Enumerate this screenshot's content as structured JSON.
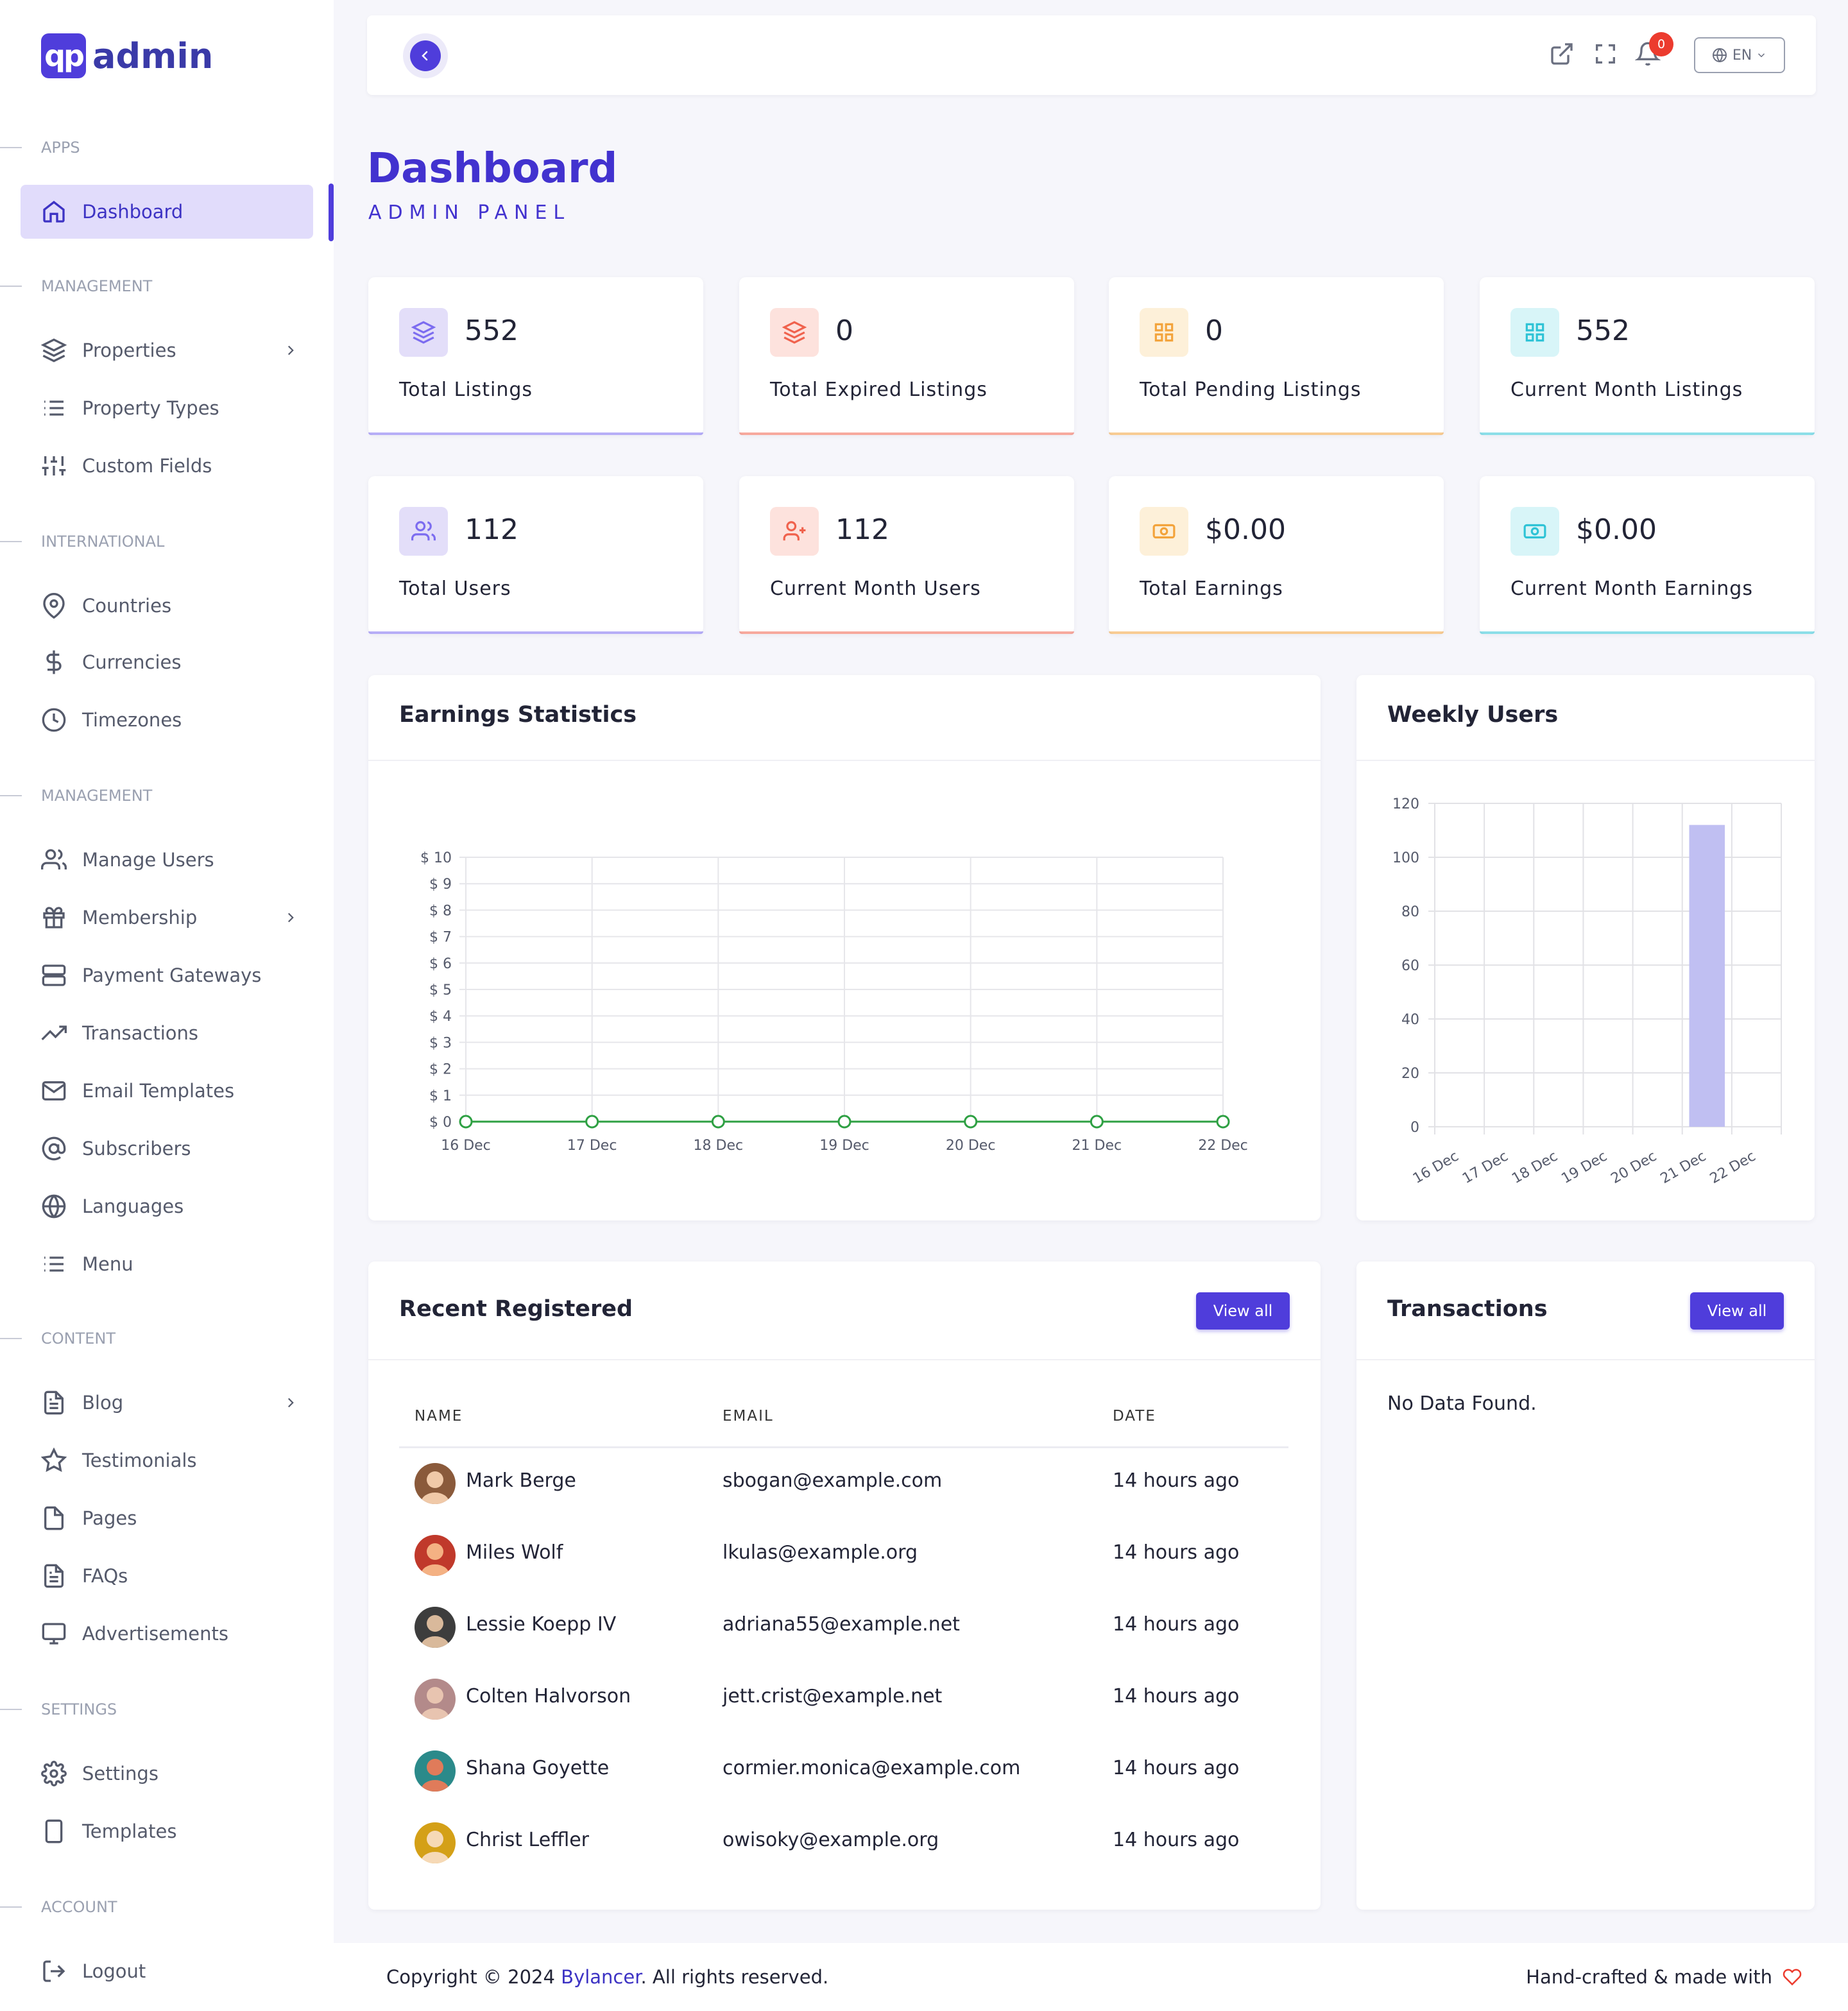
{
  "app": {
    "logo_mark": "qp",
    "logo_text": "admin"
  },
  "sidebar": {
    "sections": [
      {
        "label": "APPS",
        "items": [
          {
            "label": "Dashboard",
            "icon": "home-icon",
            "active": true
          }
        ]
      },
      {
        "label": "MANAGEMENT",
        "items": [
          {
            "label": "Properties",
            "icon": "layers-icon",
            "chevron": true
          },
          {
            "label": "Property Types",
            "icon": "list-icon"
          },
          {
            "label": "Custom Fields",
            "icon": "sliders-icon"
          }
        ]
      },
      {
        "label": "INTERNATIONAL",
        "items": [
          {
            "label": "Countries",
            "icon": "map-pin-icon"
          },
          {
            "label": "Currencies",
            "icon": "dollar-icon"
          },
          {
            "label": "Timezones",
            "icon": "clock-icon"
          }
        ]
      },
      {
        "label": "MANAGEMENT",
        "items": [
          {
            "label": "Manage Users",
            "icon": "users-icon"
          },
          {
            "label": "Membership",
            "icon": "gift-icon",
            "chevron": true
          },
          {
            "label": "Payment Gateways",
            "icon": "server-icon"
          },
          {
            "label": "Transactions",
            "icon": "trending-up-icon"
          },
          {
            "label": "Email Templates",
            "icon": "mail-icon"
          },
          {
            "label": "Subscribers",
            "icon": "at-sign-icon"
          },
          {
            "label": "Languages",
            "icon": "globe-icon"
          },
          {
            "label": "Menu",
            "icon": "list-icon"
          }
        ]
      },
      {
        "label": "CONTENT",
        "items": [
          {
            "label": "Blog",
            "icon": "file-text-icon",
            "chevron": true
          },
          {
            "label": "Testimonials",
            "icon": "star-icon"
          },
          {
            "label": "Pages",
            "icon": "file-icon"
          },
          {
            "label": "FAQs",
            "icon": "file-text-icon"
          },
          {
            "label": "Advertisements",
            "icon": "monitor-icon"
          }
        ]
      },
      {
        "label": "SETTINGS",
        "items": [
          {
            "label": "Settings",
            "icon": "settings-icon"
          },
          {
            "label": "Templates",
            "icon": "tablet-icon"
          }
        ]
      },
      {
        "label": "ACCOUNT",
        "items": [
          {
            "label": "Logout",
            "icon": "logout-icon"
          }
        ]
      }
    ]
  },
  "topbar": {
    "notifications": "0",
    "language": "EN"
  },
  "header": {
    "title": "Dashboard",
    "subtitle": "ADMIN PANEL"
  },
  "stats": [
    {
      "value": "552",
      "label": "Total Listings",
      "icon": "layers-icon",
      "color": "#7c6cf0",
      "bg": "#e3def9"
    },
    {
      "value": "0",
      "label": "Total Expired Listings",
      "icon": "layers-icon",
      "color": "#f0624d",
      "bg": "#fde2dd"
    },
    {
      "value": "0",
      "label": "Total Pending Listings",
      "icon": "grid-icon",
      "color": "#f3a33b",
      "bg": "#fdf0d9"
    },
    {
      "value": "552",
      "label": "Current Month Listings",
      "icon": "grid-icon",
      "color": "#2ec3d6",
      "bg": "#d8f5f8"
    },
    {
      "value": "112",
      "label": "Total Users",
      "icon": "users-icon",
      "color": "#7c6cf0",
      "bg": "#e3def9"
    },
    {
      "value": "112",
      "label": "Current Month Users",
      "icon": "user-plus-icon",
      "color": "#f0624d",
      "bg": "#fde2dd"
    },
    {
      "value": "$0.00",
      "label": "Total Earnings",
      "icon": "money-icon",
      "color": "#f3a33b",
      "bg": "#fdf0d9"
    },
    {
      "value": "$0.00",
      "label": "Current Month Earnings",
      "icon": "money-icon",
      "color": "#2ec3d6",
      "bg": "#d8f5f8"
    }
  ],
  "earnings": {
    "title": "Earnings Statistics"
  },
  "weekly": {
    "title": "Weekly Users"
  },
  "chart_data": [
    {
      "type": "line",
      "title": "Earnings Statistics",
      "x": [
        "16 Dec",
        "17 Dec",
        "18 Dec",
        "19 Dec",
        "20 Dec",
        "21 Dec",
        "22 Dec"
      ],
      "series": [
        {
          "values": [
            0,
            0,
            0,
            0,
            0,
            0,
            0
          ]
        }
      ],
      "ylim": [
        0,
        10
      ],
      "yticks": [
        "$ 0",
        "$ 1",
        "$ 2",
        "$ 3",
        "$ 4",
        "$ 5",
        "$ 6",
        "$ 7",
        "$ 8",
        "$ 9",
        "$ 10"
      ],
      "grid": true,
      "color": "#2ea043"
    },
    {
      "type": "bar",
      "title": "Weekly Users",
      "categories": [
        "16 Dec",
        "17 Dec",
        "18 Dec",
        "19 Dec",
        "20 Dec",
        "21 Dec",
        "22 Dec"
      ],
      "values": [
        0,
        0,
        0,
        0,
        0,
        112,
        0
      ],
      "ylim": [
        0,
        120
      ],
      "yticks": [
        "0",
        "20",
        "40",
        "60",
        "80",
        "100",
        "120"
      ],
      "grid": true,
      "color": "#c0bff2"
    }
  ],
  "recent": {
    "title": "Recent Registered",
    "view_all": "View all",
    "columns": [
      "NAME",
      "EMAIL",
      "DATE"
    ],
    "rows": [
      {
        "name": "Mark Berge",
        "email": "sbogan@example.com",
        "date": "14 hours ago"
      },
      {
        "name": "Miles Wolf",
        "email": "lkulas@example.org",
        "date": "14 hours ago"
      },
      {
        "name": "Lessie Koepp IV",
        "email": "adriana55@example.net",
        "date": "14 hours ago"
      },
      {
        "name": "Colten Halvorson",
        "email": "jett.crist@example.net",
        "date": "14 hours ago"
      },
      {
        "name": "Shana Goyette",
        "email": "cormier.monica@example.com",
        "date": "14 hours ago"
      },
      {
        "name": "Christ Leffler",
        "email": "owisoky@example.org",
        "date": "14 hours ago"
      }
    ]
  },
  "transactions": {
    "title": "Transactions",
    "view_all": "View all",
    "empty": "No Data Found."
  },
  "footer": {
    "copy_prefix": "Copyright © 2024",
    "company": "Bylancer",
    "copy_suffix": ". All rights reserved.",
    "made": "Hand-crafted & made with"
  }
}
